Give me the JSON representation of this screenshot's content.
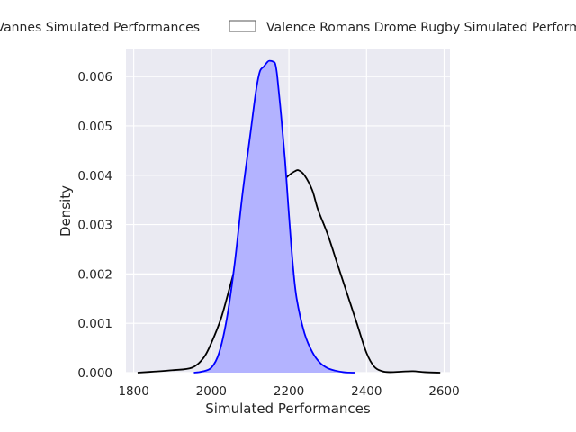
{
  "chart_data": {
    "type": "area",
    "xlabel": "Simulated Performances",
    "ylabel": "Density",
    "xlim": [
      1780,
      2615
    ],
    "ylim": [
      0,
      0.00655
    ],
    "x_ticks": [
      1800,
      2000,
      2200,
      2400,
      2600
    ],
    "y_ticks": [
      0.0,
      0.001,
      0.002,
      0.003,
      0.004,
      0.005,
      0.006
    ],
    "x_tick_labels": [
      "1800",
      "2000",
      "2200",
      "2400",
      "2600"
    ],
    "y_tick_labels": [
      "0.000",
      "0.001",
      "0.002",
      "0.003",
      "0.004",
      "0.005",
      "0.006"
    ],
    "grid": true,
    "legend_position": "top, above plot",
    "series": [
      {
        "name": "Vannes Simulated Performances",
        "color": "#0000ff",
        "fill": "#b3b3ff",
        "filled": true,
        "x": [
          1955,
          1975,
          2000,
          2020,
          2040,
          2060,
          2080,
          2100,
          2115,
          2125,
          2135,
          2145,
          2150,
          2160,
          2165,
          2170,
          2180,
          2190,
          2200,
          2210,
          2220,
          2240,
          2260,
          2280,
          2300,
          2320,
          2340,
          2355,
          2370
        ],
        "y": [
          0.0,
          2e-05,
          0.0001,
          0.0004,
          0.0011,
          0.0022,
          0.0036,
          0.0048,
          0.0057,
          0.0061,
          0.0062,
          0.0063,
          0.00632,
          0.0063,
          0.00625,
          0.006,
          0.0052,
          0.0043,
          0.0032,
          0.0022,
          0.0015,
          0.0008,
          0.00042,
          0.0002,
          9e-05,
          4e-05,
          1e-05,
          2e-06,
          0.0
        ]
      },
      {
        "name": "Valence Romans Drome Rugby Simulated Performances",
        "color": "#000000",
        "filled": false,
        "x": [
          1810,
          1850,
          1900,
          1950,
          1980,
          2000,
          2025,
          2050,
          2075,
          2100,
          2125,
          2150,
          2175,
          2200,
          2215,
          2225,
          2240,
          2260,
          2275,
          2300,
          2325,
          2350,
          2375,
          2400,
          2420,
          2440,
          2460,
          2490,
          2520,
          2550,
          2590
        ],
        "y": [
          0.0,
          2e-05,
          5e-05,
          0.0001,
          0.0003,
          0.0006,
          0.0011,
          0.0018,
          0.0025,
          0.0029,
          0.0032,
          0.0035,
          0.0038,
          0.004,
          0.00408,
          0.0041,
          0.004,
          0.0037,
          0.0033,
          0.0028,
          0.0022,
          0.0016,
          0.001,
          0.0004,
          0.00012,
          3e-05,
          1e-05,
          2e-05,
          3e-05,
          1e-05,
          0.0
        ]
      }
    ]
  }
}
